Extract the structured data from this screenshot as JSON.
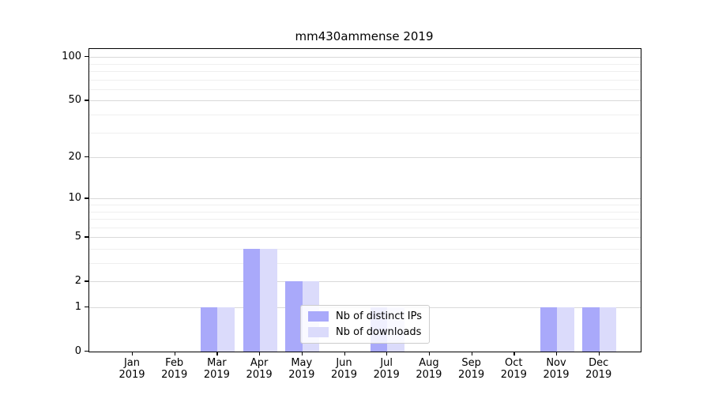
{
  "chart_data": {
    "type": "bar",
    "title": "mm430ammense 2019",
    "year_label": "2019",
    "categories": [
      "Jan",
      "Feb",
      "Mar",
      "Apr",
      "May",
      "Jun",
      "Jul",
      "Aug",
      "Sep",
      "Oct",
      "Nov",
      "Dec"
    ],
    "series": [
      {
        "name": "Nb of distinct IPs",
        "color": "#a9a9fa",
        "values": [
          0,
          0,
          1,
          4,
          2,
          0,
          1,
          0,
          0,
          0,
          1,
          1
        ]
      },
      {
        "name": "Nb of downloads",
        "color": "#dbdbfb",
        "values": [
          0,
          0,
          1,
          4,
          2,
          0,
          1,
          0,
          0,
          0,
          1,
          1
        ]
      }
    ],
    "xlabel": "",
    "ylabel": "",
    "y_scale": "log1p",
    "ylim": [
      0,
      116
    ],
    "y_major_ticks": [
      100,
      50,
      20,
      10,
      5,
      2,
      1,
      0
    ],
    "y_minor_ticks": [
      3,
      4,
      6,
      7,
      8,
      9,
      30,
      40,
      60,
      70,
      80,
      90
    ],
    "grid": true,
    "legend_position": "lower center",
    "colors": {
      "major_grid": "#d9d9d9",
      "minor_grid": "#efefef",
      "spine": "#000000",
      "text": "#000000"
    }
  }
}
